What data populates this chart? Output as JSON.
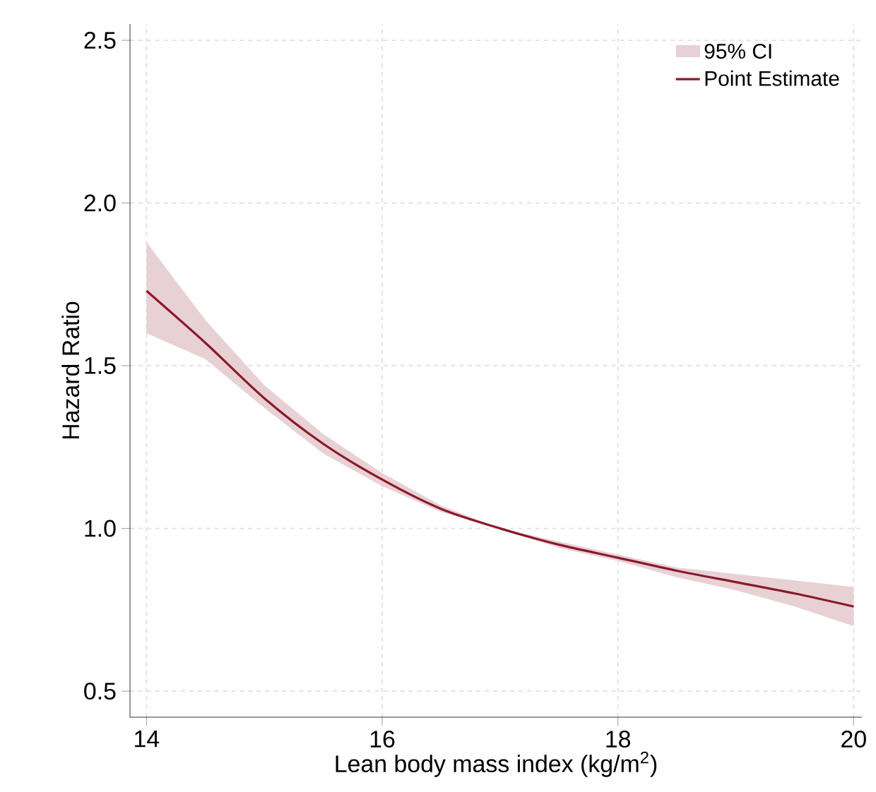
{
  "chart_data": {
    "type": "line",
    "xlabel": "Lean body mass index (kg/m$^{2}$)",
    "ylabel": "Hazard Ratio",
    "xlim": [
      13.86,
      20.07
    ],
    "ylim": [
      0.42,
      2.55
    ],
    "xticks": [
      14,
      16,
      18,
      20
    ],
    "yticks": [
      {
        "value": 0.5,
        "label": "0.5"
      },
      {
        "value": 1.0,
        "label": "1.0"
      },
      {
        "value": 1.5,
        "label": "1.5"
      },
      {
        "value": 2.0,
        "label": "2.0"
      },
      {
        "value": 2.5,
        "label": "2.5"
      }
    ],
    "grid": true,
    "legend": "top right",
    "marker": "none",
    "line_style": "solid",
    "annotations": [
      "95% CI"
    ],
    "series": [
      {
        "name": "Point Estimate",
        "color": "#8b1a2b",
        "x": [
          14,
          14.5,
          15,
          15.5,
          16,
          16.5,
          17,
          17.5,
          18,
          18.5,
          19,
          19.5,
          20
        ],
        "values": [
          1.73,
          1.57,
          1.4,
          1.26,
          1.15,
          1.06,
          1.0,
          0.95,
          0.91,
          0.87,
          0.835,
          0.8,
          0.76
        ],
        "lower": [
          1.6,
          1.52,
          1.37,
          1.23,
          1.13,
          1.05,
          1.0,
          0.94,
          0.9,
          0.85,
          0.81,
          0.76,
          0.7
        ],
        "upper": [
          1.88,
          1.64,
          1.44,
          1.29,
          1.17,
          1.07,
          1.0,
          0.96,
          0.92,
          0.88,
          0.86,
          0.84,
          0.82
        ]
      }
    ]
  }
}
